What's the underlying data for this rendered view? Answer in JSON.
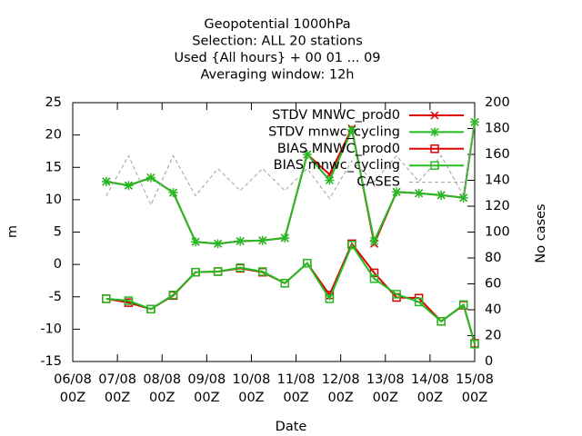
{
  "chart_data": {
    "type": "line",
    "title": [
      "Geopotential 1000hPa",
      "Selection: ALL      20 stations",
      "Used {All hours} + 00 01 ... 09",
      "Averaging window: 12h"
    ],
    "x_label": "Date",
    "y_label": "m",
    "y2_label": "No cases",
    "x": [
      18,
      30,
      42,
      54,
      66,
      78,
      90,
      102,
      114,
      126,
      138,
      150,
      162,
      174,
      186,
      198,
      210,
      216
    ],
    "xlim": [
      0,
      216
    ],
    "xticks": [
      {
        "value": 0,
        "label": "06/08 00Z"
      },
      {
        "value": 24,
        "label": "07/08 00Z"
      },
      {
        "value": 48,
        "label": "08/08 00Z"
      },
      {
        "value": 72,
        "label": "09/08 00Z"
      },
      {
        "value": 96,
        "label": "10/08 00Z"
      },
      {
        "value": 120,
        "label": "11/08 00Z"
      },
      {
        "value": 144,
        "label": "12/08 00Z"
      },
      {
        "value": 168,
        "label": "13/08 00Z"
      },
      {
        "value": 192,
        "label": "14/08 00Z"
      },
      {
        "value": 216,
        "label": "15/08 00Z"
      }
    ],
    "ylim": [
      -15,
      25
    ],
    "yticks": [
      -15,
      -10,
      -5,
      0,
      5,
      10,
      15,
      20,
      25
    ],
    "y2lim": [
      0,
      200
    ],
    "y2ticks": [
      0,
      20,
      40,
      60,
      80,
      100,
      120,
      140,
      160,
      180,
      200
    ],
    "legend": "top-right",
    "series": [
      {
        "name": "STDV MNWC_prod0",
        "color": "#dd0000",
        "marker": "x",
        "values": [
          12.8,
          12.2,
          13.4,
          11.1,
          3.5,
          3.2,
          3.6,
          3.7,
          4.1,
          17.0,
          13.9,
          21.0,
          3.2,
          11.2,
          11.0,
          10.7,
          10.3,
          22.0
        ]
      },
      {
        "name": "STDV mnwc_cycling",
        "color": "#22bb22",
        "marker": "star",
        "values": [
          12.8,
          12.2,
          13.4,
          11.1,
          3.5,
          3.2,
          3.6,
          3.7,
          4.1,
          17.0,
          13.0,
          20.8,
          3.6,
          11.2,
          11.0,
          10.7,
          10.3,
          22.0
        ]
      },
      {
        "name": "BIAS MNWC_prod0",
        "color": "#dd0000",
        "marker": "square",
        "values": [
          -5.3,
          -5.9,
          -6.9,
          -4.8,
          -1.2,
          -1.1,
          -0.6,
          -1.2,
          -2.9,
          0.2,
          -4.7,
          3.2,
          -1.3,
          -5.1,
          -5.2,
          -8.8,
          -6.3,
          -12.2
        ]
      },
      {
        "name": "BIAS mnwc_cycling",
        "color": "#22bb22",
        "marker": "square",
        "values": [
          -5.3,
          -5.6,
          -6.9,
          -4.7,
          -1.2,
          -1.1,
          -0.5,
          -1.1,
          -2.9,
          0.2,
          -5.3,
          3.0,
          -2.2,
          -4.6,
          -5.8,
          -8.8,
          -6.2,
          -12.3
        ]
      },
      {
        "name": "CASES",
        "color": "#a0a0a0",
        "marker": "none",
        "dash": true,
        "axis": "y2",
        "values": [
          128,
          159,
          121,
          159,
          128,
          149,
          132,
          149,
          132,
          149,
          126,
          155,
          139,
          159,
          139,
          159,
          128,
          185
        ]
      }
    ]
  }
}
